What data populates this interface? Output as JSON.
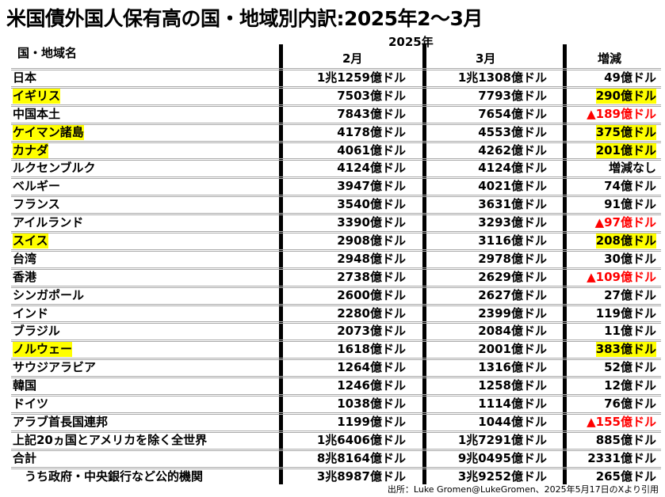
{
  "title": "米国債外国人保有高の国・地域別内訳:2025年2〜3月",
  "header": {
    "name": "国・地域名",
    "year": "2025年",
    "feb": "2月",
    "mar": "3月",
    "change": "増減"
  },
  "rows": [
    {
      "name": "日本",
      "feb": "1兆1259億ドル",
      "mar": "1兆1308億ドル",
      "change": "49億ドル",
      "highlight": false,
      "decrease": false
    },
    {
      "name": "イギリス",
      "feb": "7503億ドル",
      "mar": "7793億ドル",
      "change": "290億ドル",
      "highlight": true,
      "decrease": false
    },
    {
      "name": "中国本土",
      "feb": "7843億ドル",
      "mar": "7654億ドル",
      "change": "▲189億ドル",
      "highlight": false,
      "decrease": true
    },
    {
      "name": "ケイマン諸島",
      "feb": "4178億ドル",
      "mar": "4553億ドル",
      "change": "375億ドル",
      "highlight": true,
      "decrease": false
    },
    {
      "name": "カナダ",
      "feb": "4061億ドル",
      "mar": "4262億ドル",
      "change": "201億ドル",
      "highlight": true,
      "decrease": false
    },
    {
      "name": "ルクセンブルク",
      "feb": "4124億ドル",
      "mar": "4124億ドル",
      "change": "増減なし",
      "highlight": false,
      "decrease": false
    },
    {
      "name": "ベルギー",
      "feb": "3947億ドル",
      "mar": "4021億ドル",
      "change": "74億ドル",
      "highlight": false,
      "decrease": false
    },
    {
      "name": "フランス",
      "feb": "3540億ドル",
      "mar": "3631億ドル",
      "change": "91億ドル",
      "highlight": false,
      "decrease": false
    },
    {
      "name": "アイルランド",
      "feb": "3390億ドル",
      "mar": "3293億ドル",
      "change": "▲97億ドル",
      "highlight": false,
      "decrease": true
    },
    {
      "name": "スイス",
      "feb": "2908億ドル",
      "mar": "3116億ドル",
      "change": "208億ドル",
      "highlight": true,
      "decrease": false
    },
    {
      "name": "台湾",
      "feb": "2948億ドル",
      "mar": "2978億ドル",
      "change": "30億ドル",
      "highlight": false,
      "decrease": false
    },
    {
      "name": "香港",
      "feb": "2738億ドル",
      "mar": "2629億ドル",
      "change": "▲109億ドル",
      "highlight": false,
      "decrease": true
    },
    {
      "name": "シンガポール",
      "feb": "2600億ドル",
      "mar": "2627億ドル",
      "change": "27億ドル",
      "highlight": false,
      "decrease": false
    },
    {
      "name": "インド",
      "feb": "2280億ドル",
      "mar": "2399億ドル",
      "change": "119億ドル",
      "highlight": false,
      "decrease": false
    },
    {
      "name": "ブラジル",
      "feb": "2073億ドル",
      "mar": "2084億ドル",
      "change": "11億ドル",
      "highlight": false,
      "decrease": false
    },
    {
      "name": "ノルウェー",
      "feb": "1618億ドル",
      "mar": "2001億ドル",
      "change": "383億ドル",
      "highlight": true,
      "decrease": false
    },
    {
      "name": "サウジアラビア",
      "feb": "1264億ドル",
      "mar": "1316億ドル",
      "change": "52億ドル",
      "highlight": false,
      "decrease": false
    },
    {
      "name": "韓国",
      "feb": "1246億ドル",
      "mar": "1258億ドル",
      "change": "12億ドル",
      "highlight": false,
      "decrease": false
    },
    {
      "name": "ドイツ",
      "feb": "1038億ドル",
      "mar": "1114億ドル",
      "change": "76億ドル",
      "highlight": false,
      "decrease": false
    },
    {
      "name": "アラブ首長国連邦",
      "feb": "1199億ドル",
      "mar": "1044億ドル",
      "change": "▲155億ドル",
      "highlight": false,
      "decrease": true
    },
    {
      "name": "上記20ヵ国とアメリカを除く全世界",
      "feb": "1兆6406億ドル",
      "mar": "1兆7291億ドル",
      "change": "885億ドル",
      "highlight": false,
      "decrease": false
    },
    {
      "name": "合計",
      "feb": "8兆8164億ドル",
      "mar": "9兆0495億ドル",
      "change": "2331億ドル",
      "highlight": false,
      "decrease": false
    },
    {
      "name": "　うち政府・中央銀行など公的機関",
      "feb": "3兆8987億ドル",
      "mar": "3兆9252億ドル",
      "change": "265億ドル",
      "highlight": false,
      "decrease": false
    }
  ],
  "source": "出所：Luke Gromen@LukeGromen、2025年5月17日のXより引用",
  "colors": {
    "highlight": "#ffff00",
    "decrease": "#ff0000"
  }
}
